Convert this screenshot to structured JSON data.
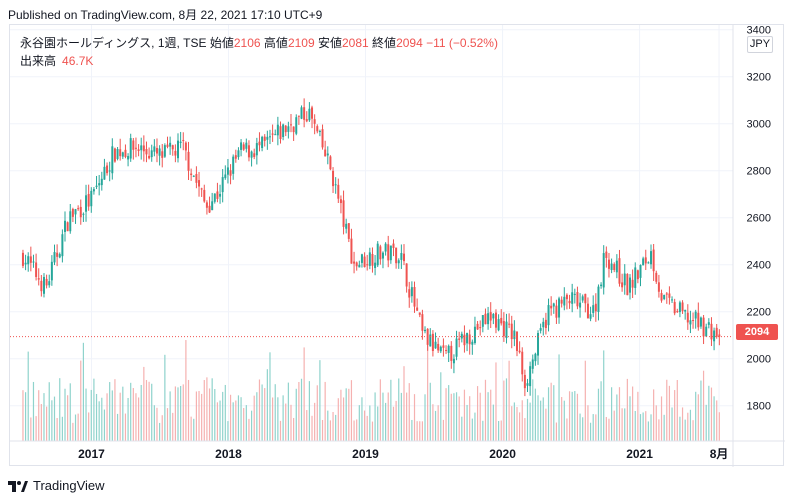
{
  "header": {
    "published": "Published on TradingView.com, 8月 22, 2021 17:10 UTC+9"
  },
  "legend": {
    "symbol": "永谷園ホールディングス, 1週, TSE",
    "open_label": "始値",
    "open_value": "2106",
    "high_label": "高値",
    "high_value": "2109",
    "low_label": "安値",
    "low_value": "2081",
    "close_label": "終値",
    "close_value": "2094",
    "change": "−11 (−0.52%)",
    "volume_label": "出来高",
    "volume_value": "46.7K"
  },
  "currency": "JPY",
  "last_price_label": "2094",
  "footer": {
    "brand": "TradingView"
  },
  "colors": {
    "up": "#26a69a",
    "down": "#ef5350",
    "up_volume": "#8fd3cc",
    "down_volume": "#f5b1b0",
    "axis_text": "#131722",
    "grid": "#f0f3fa"
  },
  "chart_data": {
    "type": "candlestick",
    "interval": "1 week",
    "y_axis": {
      "ticks": [
        "1800",
        "2000",
        "2200",
        "2400",
        "2600",
        "2800",
        "3000",
        "3200",
        "3400"
      ],
      "ylim": [
        1650,
        3420
      ],
      "side": "right"
    },
    "x_axis": {
      "ticks": [
        "2017",
        "2018",
        "2019",
        "2020",
        "2021",
        "8月"
      ]
    },
    "last_close": 2094,
    "volume_series": "出来高",
    "approx_close_path": [
      {
        "t": "2016-07",
        "close": 2440
      },
      {
        "t": "2016-09",
        "close": 2300
      },
      {
        "t": "2016-11",
        "close": 2600
      },
      {
        "t": "2017-01",
        "close": 2680
      },
      {
        "t": "2017-03",
        "close": 2880
      },
      {
        "t": "2017-05",
        "close": 2900
      },
      {
        "t": "2017-07",
        "close": 2860
      },
      {
        "t": "2017-09",
        "close": 2900
      },
      {
        "t": "2017-11",
        "close": 2650
      },
      {
        "t": "2017-12",
        "close": 2700
      },
      {
        "t": "2018-02",
        "close": 2880
      },
      {
        "t": "2018-04",
        "close": 2900
      },
      {
        "t": "2018-06",
        "close": 2980
      },
      {
        "t": "2018-08",
        "close": 3050
      },
      {
        "t": "2018-10",
        "close": 2800
      },
      {
        "t": "2018-12",
        "close": 2400
      },
      {
        "t": "2019-02",
        "close": 2450
      },
      {
        "t": "2019-04",
        "close": 2450
      },
      {
        "t": "2019-06",
        "close": 2100
      },
      {
        "t": "2019-08",
        "close": 2000
      },
      {
        "t": "2019-10",
        "close": 2100
      },
      {
        "t": "2019-12",
        "close": 2180
      },
      {
        "t": "2020-02",
        "close": 2100
      },
      {
        "t": "2020-03",
        "close": 1900
      },
      {
        "t": "2020-05",
        "close": 2200
      },
      {
        "t": "2020-07",
        "close": 2250
      },
      {
        "t": "2020-09",
        "close": 2200
      },
      {
        "t": "2020-10",
        "close": 2450
      },
      {
        "t": "2020-12",
        "close": 2300
      },
      {
        "t": "2021-02",
        "close": 2450
      },
      {
        "t": "2021-03",
        "close": 2250
      },
      {
        "t": "2021-05",
        "close": 2180
      },
      {
        "t": "2021-07",
        "close": 2130
      },
      {
        "t": "2021-08",
        "close": 2094
      }
    ]
  }
}
